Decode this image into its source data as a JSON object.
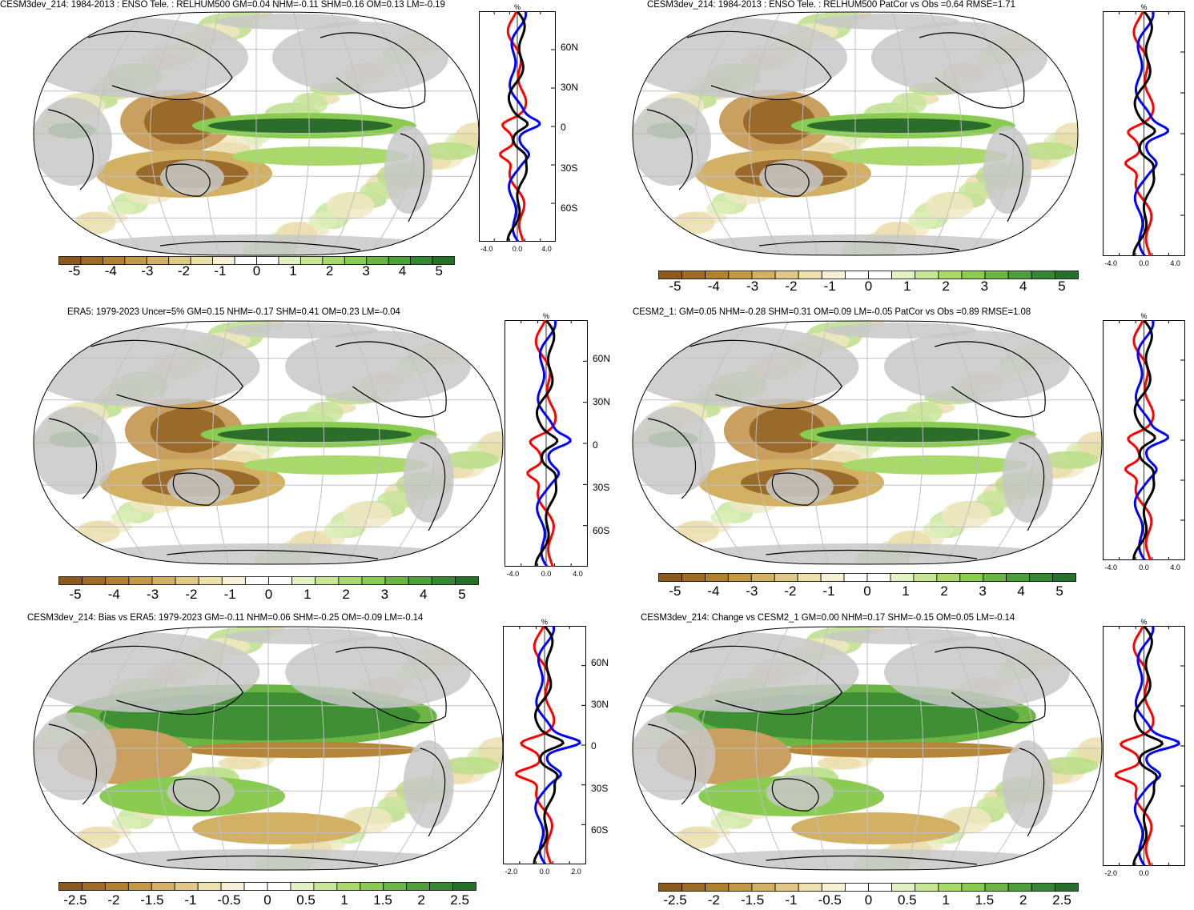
{
  "panels": [
    {
      "id": "p1",
      "title": "CESM3dev_214: 1984-2013 : ENSO Tele. : RELHUM500 GM=0.04 NHM=-0.11 SHM=0.16 OM=0.13 LM=-0.19",
      "profile_unit": "%",
      "profile_xticks": [
        "-4.0",
        "0.0",
        "4.0"
      ],
      "profile_lat_labels": [
        "60N",
        "30N",
        "0",
        "30S",
        "60S"
      ],
      "colorbar_labels": [
        "-5",
        "-4",
        "-3",
        "-2",
        "-1",
        "0",
        "1",
        "2",
        "3",
        "4",
        "5"
      ]
    },
    {
      "id": "p2",
      "title": "CESM3dev_214: 1984-2013 : ENSO Tele. : RELHUM500 PatCor vs Obs =0.64 RMSE=1.71",
      "profile_unit": "%",
      "profile_xticks": [
        "-4.0",
        "0.0",
        "4.0"
      ],
      "profile_lat_labels": [],
      "colorbar_labels": [
        "-5",
        "-4",
        "-3",
        "-2",
        "-1",
        "0",
        "1",
        "2",
        "3",
        "4",
        "5"
      ]
    },
    {
      "id": "p3",
      "title": "ERA5: 1979-2023 Uncer=5% GM=0.15 NHM=-0.17 SHM=0.41 OM=0.23 LM=-0.04",
      "profile_unit": "%",
      "profile_xticks": [
        "-4.0",
        "0.0",
        "4.0"
      ],
      "profile_lat_labels": [
        "60N",
        "30N",
        "0",
        "30S",
        "60S"
      ],
      "colorbar_labels": [
        "-5",
        "-4",
        "-3",
        "-2",
        "-1",
        "0",
        "1",
        "2",
        "3",
        "4",
        "5"
      ]
    },
    {
      "id": "p4",
      "title": "CESM2_1: GM=0.05 NHM=-0.28 SHM=0.31 OM=0.09 LM=-0.05 PatCor vs Obs =0.89 RMSE=1.08",
      "profile_unit": "%",
      "profile_xticks": [
        "-4.0",
        "0.0",
        "4.0"
      ],
      "profile_lat_labels": [],
      "colorbar_labels": [
        "-5",
        "-4",
        "-3",
        "-2",
        "-1",
        "0",
        "1",
        "2",
        "3",
        "4",
        "5"
      ]
    },
    {
      "id": "p5",
      "title": "CESM3dev_214: Bias vs ERA5: 1979-2023 GM=-0.11 NHM=0.06 SHM=-0.25 OM=-0.09 LM=-0.14",
      "profile_unit": "%",
      "profile_xticks": [
        "-2.0",
        "0.0",
        "2.0"
      ],
      "profile_lat_labels": [
        "60N",
        "30N",
        "0",
        "30S",
        "60S"
      ],
      "colorbar_labels": [
        "-2.5",
        "-2",
        "-1.5",
        "-1",
        "-0.5",
        "0",
        "0.5",
        "1",
        "1.5",
        "2",
        "2.5"
      ]
    },
    {
      "id": "p6",
      "title": "CESM3dev_214: Change vs CESM2_1 GM=0.00 NHM=0.17 SHM=-0.15 OM=0.05 LM=-0.14",
      "profile_unit": "%",
      "profile_xticks": [
        "-2.0",
        "0.0"
      ],
      "profile_lat_labels": [],
      "colorbar_labels": [
        "-2.5",
        "-2",
        "-1.5",
        "-1",
        "-0.5",
        "0",
        "0.5",
        "1",
        "1.5",
        "2",
        "2.5"
      ]
    }
  ],
  "colors": {
    "colorbar": [
      "#8c5a1e",
      "#9e6c28",
      "#b0822f",
      "#c29a45",
      "#d2b165",
      "#e0c888",
      "#ece0ad",
      "#f6f1d6",
      "#ffffff",
      "#ffffff",
      "#e2f2c4",
      "#c7e796",
      "#a8d96a",
      "#8acb52",
      "#6cb545",
      "#4f9e3c",
      "#368633",
      "#26702b"
    ],
    "land": "#c8c8c8",
    "coast": "#000000",
    "grid": "#c0c0c0",
    "line_black": "#000000",
    "line_red": "#ff0000",
    "line_blue": "#0000ff"
  }
}
